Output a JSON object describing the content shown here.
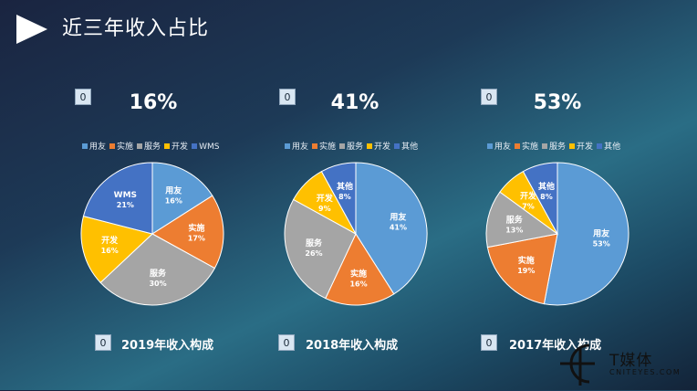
{
  "page": {
    "title": "近三年收入占比"
  },
  "colors": {
    "blue": "#5b9bd5",
    "orange": "#ed7d31",
    "gray": "#a5a5a5",
    "yellow": "#ffc000",
    "navy": "#4472c4"
  },
  "charts": [
    {
      "badge": "0",
      "percent": "16%",
      "caption_badge": "0",
      "caption": "2019年收入构成"
    },
    {
      "badge": "0",
      "percent": "41%",
      "caption_badge": "0",
      "caption": "2018年收入构成"
    },
    {
      "badge": "0",
      "percent": "53%",
      "caption_badge": "0",
      "caption": "2017年收入构成"
    }
  ],
  "chart_data": [
    {
      "type": "pie",
      "title": "2019年收入构成",
      "categories": [
        "用友",
        "实施",
        "服务",
        "开发",
        "WMS"
      ],
      "values": [
        16,
        17,
        30,
        16,
        21
      ],
      "labels": [
        "16%",
        "17%",
        "30%",
        "16%",
        "21%"
      ],
      "colors": [
        "#5b9bd5",
        "#ed7d31",
        "#a5a5a5",
        "#ffc000",
        "#4472c4"
      ],
      "legend": "top"
    },
    {
      "type": "pie",
      "title": "2018年收入构成",
      "categories": [
        "用友",
        "实施",
        "服务",
        "开发",
        "其他"
      ],
      "values": [
        41,
        16,
        26,
        9,
        8
      ],
      "labels": [
        "41%",
        "16%",
        "26%",
        "9%",
        "8%"
      ],
      "colors": [
        "#5b9bd5",
        "#ed7d31",
        "#a5a5a5",
        "#ffc000",
        "#4472c4"
      ],
      "legend": "top"
    },
    {
      "type": "pie",
      "title": "2017年收入构成",
      "categories": [
        "用友",
        "实施",
        "服务",
        "开发",
        "其他"
      ],
      "values": [
        53,
        19,
        13,
        7,
        8
      ],
      "labels": [
        "53%",
        "19%",
        "13%",
        "7%",
        "8%"
      ],
      "colors": [
        "#5b9bd5",
        "#ed7d31",
        "#a5a5a5",
        "#ffc000",
        "#4472c4"
      ],
      "legend": "top"
    }
  ],
  "logo": {
    "main": "T媒体",
    "sub": "CNITEYES.COM"
  }
}
